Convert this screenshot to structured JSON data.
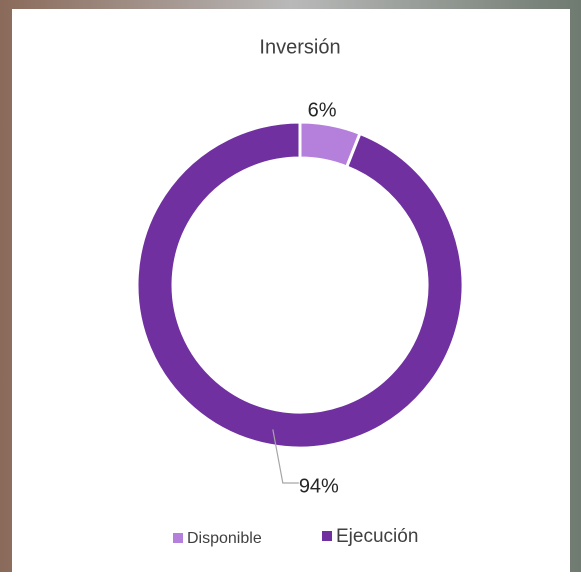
{
  "chart_data": {
    "type": "pie",
    "title": "Inversión",
    "categories": [
      "Disponible",
      "Ejecución"
    ],
    "values": [
      6,
      94
    ],
    "value_labels": [
      "6%",
      "94%"
    ],
    "colors": [
      "#b57fdc",
      "#7030a0"
    ]
  }
}
